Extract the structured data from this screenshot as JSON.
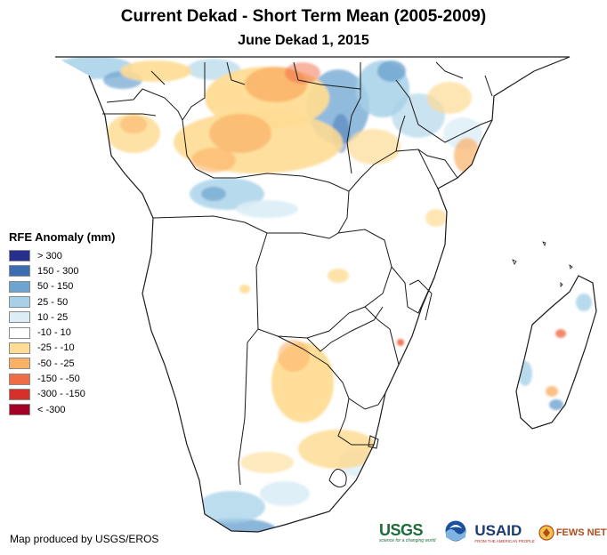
{
  "map": {
    "title": "Current Dekad - Short Term Mean (2005-2009)",
    "subtitle": "June Dekad 1, 2015",
    "region": "Southern and Eastern Africa",
    "variable": "RFE Anomaly (mm)"
  },
  "legend": {
    "title": "RFE Anomaly (mm)",
    "items": [
      {
        "label": "> 300",
        "color": "#262f8e"
      },
      {
        "label": "150 - 300",
        "color": "#3b6db3"
      },
      {
        "label": "50 - 150",
        "color": "#6ea4d0"
      },
      {
        "label": "25 - 50",
        "color": "#a6d1e8"
      },
      {
        "label": "10 - 25",
        "color": "#dcedf6"
      },
      {
        "label": "-10 - 10",
        "color": "#ffffff"
      },
      {
        "label": "-25 - -10",
        "color": "#fedc94"
      },
      {
        "label": "-50 - -25",
        "color": "#fbb066"
      },
      {
        "label": "-150 - -50",
        "color": "#f06c45"
      },
      {
        "label": "-300 - -150",
        "color": "#d62f27"
      },
      {
        "label": "< -300",
        "color": "#a50026"
      }
    ]
  },
  "credit": "Map produced by USGS/EROS",
  "logos": {
    "usgs": "USGS",
    "usgs_tag": "science for a changing world",
    "noaa": "NOAA",
    "usaid": "USAID",
    "usaid_tag": "FROM THE AMERICAN PEOPLE",
    "fews": "FEWS NET"
  },
  "icons": [
    "noaa-logo-icon",
    "fews-net-logo-icon"
  ]
}
